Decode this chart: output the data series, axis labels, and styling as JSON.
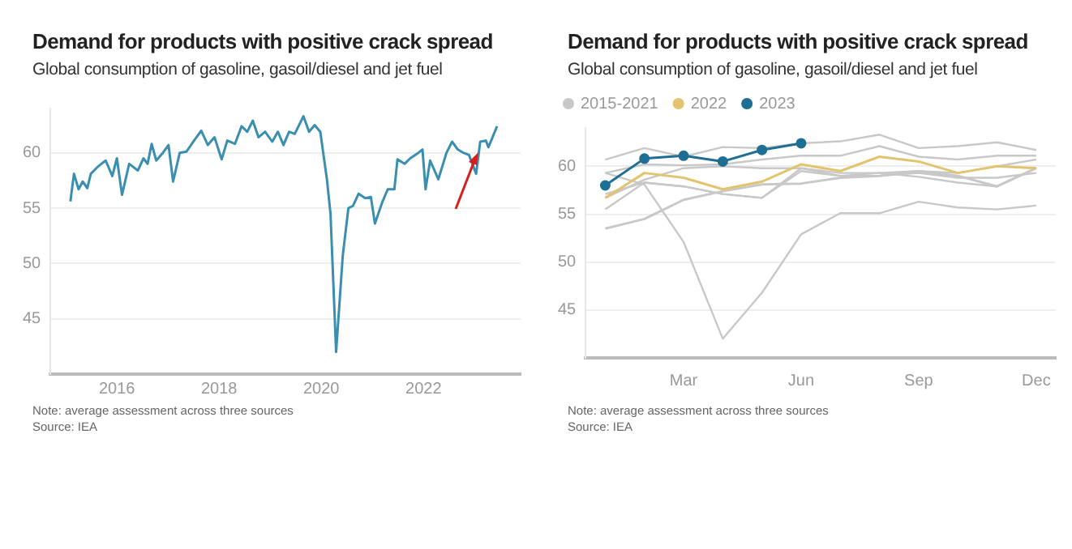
{
  "chart_data": [
    {
      "type": "line",
      "title": "Demand for products with positive crack spread",
      "subtitle": "Global consumption of gasoline, gasoil/diesel and jet fuel",
      "xlim": [
        2014.7,
        2023.9
      ],
      "xticks": [
        2016,
        2018,
        2020,
        2022
      ],
      "ylim": [
        40,
        64
      ],
      "yticks": [
        45,
        50,
        55,
        60
      ],
      "grid": "y",
      "legend": false,
      "marker": "none",
      "series": [
        {
          "color": "#3a8fb0",
          "x": [
            2015.09,
            2015.16,
            2015.25,
            2015.33,
            2015.42,
            2015.49,
            2015.64,
            2015.78,
            2015.91,
            2016.0,
            2016.1,
            2016.24,
            2016.41,
            2016.52,
            2016.6,
            2016.68,
            2016.77,
            2016.9,
            2017.01,
            2017.1,
            2017.23,
            2017.36,
            2017.51,
            2017.65,
            2017.78,
            2017.91,
            2018.05,
            2018.16,
            2018.31,
            2018.44,
            2018.55,
            2018.66,
            2018.77,
            2018.9,
            2019.04,
            2019.15,
            2019.26,
            2019.37,
            2019.48,
            2019.65,
            2019.76,
            2019.87,
            2019.98,
            2020.11,
            2020.18,
            2020.29,
            2020.42,
            2020.53,
            2020.62,
            2020.73,
            2020.86,
            2020.97,
            2021.05,
            2021.19,
            2021.3,
            2021.43,
            2021.49,
            2021.63,
            2021.74,
            2021.9,
            2021.98,
            2022.04,
            2022.13,
            2022.29,
            2022.45,
            2022.56,
            2022.67,
            2022.78,
            2022.89,
            2023.03,
            2023.11,
            2023.22,
            2023.27,
            2023.44
          ],
          "values": [
            55.6,
            58.1,
            56.7,
            57.4,
            56.8,
            58.1,
            58.8,
            59.3,
            57.9,
            59.5,
            56.2,
            59.0,
            58.4,
            59.5,
            59.0,
            60.8,
            59.3,
            60.0,
            60.7,
            57.4,
            60.0,
            60.1,
            61.1,
            62.0,
            60.7,
            61.4,
            59.4,
            61.1,
            60.8,
            62.4,
            61.9,
            62.9,
            61.4,
            61.9,
            61.0,
            61.9,
            60.7,
            61.9,
            61.7,
            63.3,
            61.9,
            62.5,
            61.9,
            57.6,
            54.5,
            42.0,
            50.7,
            55.0,
            55.2,
            56.3,
            55.9,
            56.0,
            53.6,
            55.5,
            56.7,
            56.7,
            59.4,
            59.0,
            59.5,
            60.0,
            60.3,
            56.7,
            59.3,
            57.6,
            60.0,
            61.0,
            60.3,
            60.0,
            59.8,
            58.1,
            61.0,
            61.1,
            60.5,
            62.4
          ]
        }
      ],
      "annotations": [
        "Note: average assessment across three sources",
        "Source: IEA"
      ]
    },
    {
      "type": "line",
      "title": "Demand for products with positive crack spread",
      "subtitle": "Global consumption of gasoline, gasoil/diesel and jet fuel",
      "categories": [
        null,
        null,
        "Mar",
        null,
        null,
        "Jun",
        null,
        null,
        "Sep",
        null,
        null,
        "Dec"
      ],
      "ylim": [
        40,
        64
      ],
      "yticks": [
        45,
        50,
        55,
        60
      ],
      "grid": "y",
      "legend": "top left",
      "series": [
        {
          "name": "2015-2021",
          "color": "#c8c8c8",
          "marker": "none",
          "values": [
            53.5,
            54.5,
            56.5,
            57.4,
            58.1,
            58.2,
            58.8,
            59.0,
            59.5,
            59.0,
            57.9,
            59.8
          ]
        },
        {
          "color": "#c8c8c8",
          "marker": "none",
          "values": [
            55.5,
            58.3,
            57.9,
            57.1,
            56.7,
            59.5,
            59.0,
            59.3,
            59.5,
            59.3,
            60.0,
            60.7
          ]
        },
        {
          "color": "#c8c8c8",
          "marker": "none",
          "values": [
            56.7,
            58.6,
            59.8,
            60.0,
            59.8,
            59.8,
            59.0,
            59.0,
            59.3,
            58.8,
            58.8,
            59.3
          ]
        },
        {
          "color": "#c8c8c8",
          "marker": "none",
          "values": [
            59.3,
            60.2,
            60.1,
            60.2,
            60.7,
            61.1,
            61.1,
            62.1,
            61.0,
            60.7,
            61.1,
            61.1
          ]
        },
        {
          "color": "#c8c8c8",
          "marker": "none",
          "values": [
            60.7,
            61.9,
            61.0,
            62.0,
            61.9,
            62.4,
            62.6,
            63.3,
            61.9,
            62.1,
            62.5,
            61.7
          ]
        },
        {
          "color": "#c8c8c8",
          "marker": "none",
          "values": [
            59.3,
            58.1,
            52.1,
            42.0,
            46.8,
            52.9,
            55.1,
            55.1,
            56.3,
            55.7,
            55.5,
            55.9
          ]
        },
        {
          "color": "#c8c8c8",
          "marker": "none",
          "values": [
            57.1,
            58.3,
            57.9,
            57.1,
            56.7,
            59.8,
            59.3,
            59.3,
            58.9,
            58.3,
            57.9,
            59.8
          ]
        },
        {
          "name": "2022",
          "color": "#e3c46e",
          "marker": "none",
          "values": [
            56.7,
            59.3,
            58.8,
            57.6,
            58.4,
            60.2,
            59.5,
            61.0,
            60.5,
            59.3,
            60.0,
            59.8
          ]
        },
        {
          "name": "2023",
          "color": "#1f6f95",
          "marker": "circle",
          "values": [
            58.0,
            60.8,
            61.1,
            60.5,
            61.7,
            62.4,
            null,
            null,
            null,
            null,
            null,
            null
          ]
        }
      ],
      "annotations": [
        "Note: average assessment across three sources",
        "Source: IEA"
      ]
    }
  ]
}
